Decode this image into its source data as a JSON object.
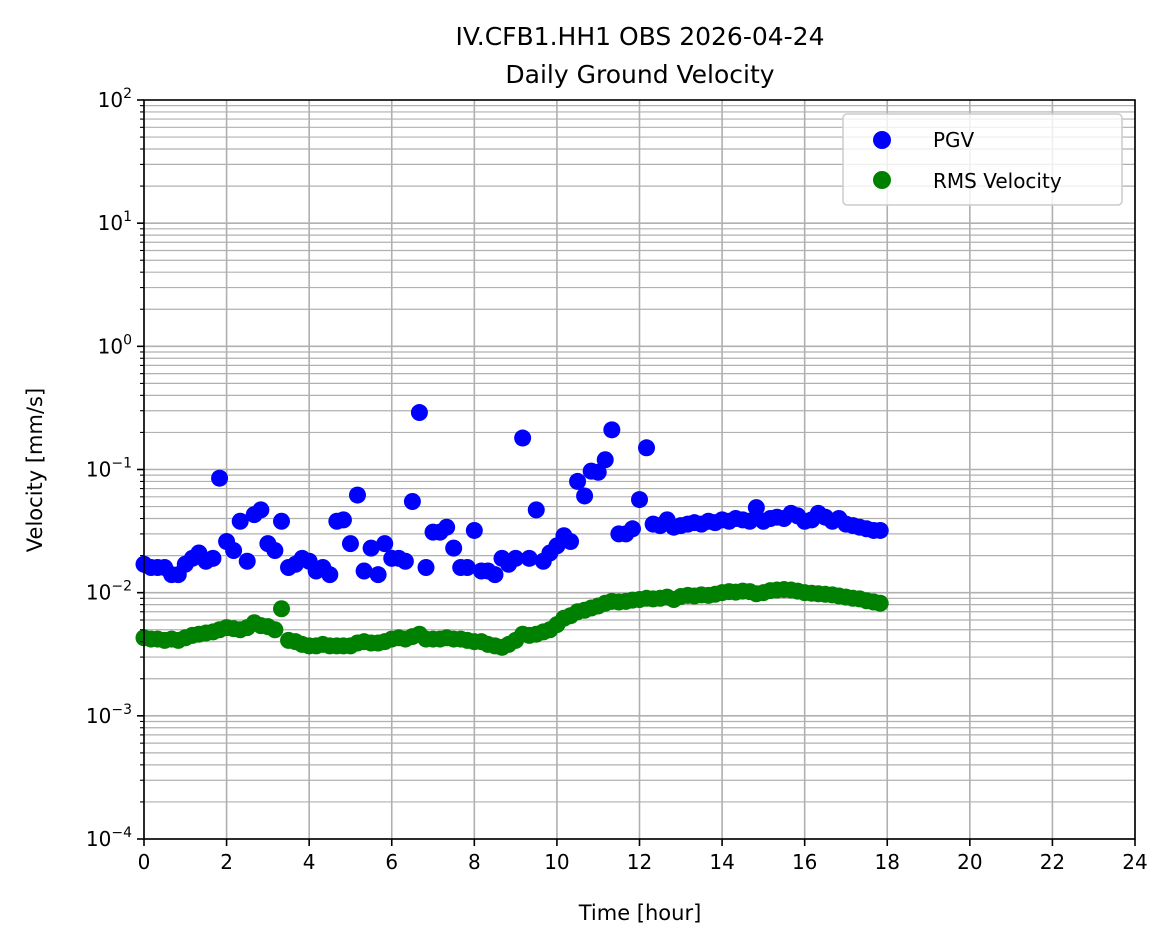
{
  "chart_data": {
    "type": "scatter",
    "title": [
      "IV.CFB1.HH1 OBS 2026-04-24",
      "Daily Ground Velocity"
    ],
    "xlabel": "Time [hour]",
    "ylabel": "Velocity [mm/s]",
    "xlim": [
      0,
      24
    ],
    "ylim": [
      0.0001,
      100
    ],
    "yscale": "log",
    "grid": true,
    "legend_position": "top-right",
    "x_tick_labels": [
      "0",
      "2",
      "4",
      "6",
      "8",
      "10",
      "12",
      "14",
      "16",
      "18",
      "20",
      "22",
      "24"
    ],
    "x_ticks": [
      0,
      2,
      4,
      6,
      8,
      10,
      12,
      14,
      16,
      18,
      20,
      22,
      24
    ],
    "y_tick_labels": [
      {
        "base": "10",
        "exp": "−4",
        "value": 0.0001
      },
      {
        "base": "10",
        "exp": "−3",
        "value": 0.001
      },
      {
        "base": "10",
        "exp": "−2",
        "value": 0.01
      },
      {
        "base": "10",
        "exp": "−1",
        "value": 0.1
      },
      {
        "base": "10",
        "exp": "0",
        "value": 1
      },
      {
        "base": "10",
        "exp": "1",
        "value": 10
      },
      {
        "base": "10",
        "exp": "2",
        "value": 100
      }
    ],
    "series": [
      {
        "name": "PGV",
        "color": "#0000ff",
        "points": [
          [
            0,
            0.017
          ],
          [
            0.17,
            0.016
          ],
          [
            0.33,
            0.016
          ],
          [
            0.5,
            0.016
          ],
          [
            0.67,
            0.014
          ],
          [
            0.83,
            0.014
          ],
          [
            1.0,
            0.017
          ],
          [
            1.17,
            0.019
          ],
          [
            1.33,
            0.021
          ],
          [
            1.5,
            0.018
          ],
          [
            1.67,
            0.019
          ],
          [
            1.83,
            0.085
          ],
          [
            2.0,
            0.026
          ],
          [
            2.17,
            0.022
          ],
          [
            2.33,
            0.038
          ],
          [
            2.5,
            0.018
          ],
          [
            2.67,
            0.043
          ],
          [
            2.83,
            0.047
          ],
          [
            3.0,
            0.025
          ],
          [
            3.17,
            0.022
          ],
          [
            3.33,
            0.038
          ],
          [
            3.5,
            0.016
          ],
          [
            3.67,
            0.017
          ],
          [
            3.83,
            0.019
          ],
          [
            4.0,
            0.018
          ],
          [
            4.17,
            0.015
          ],
          [
            4.33,
            0.016
          ],
          [
            4.5,
            0.014
          ],
          [
            4.67,
            0.038
          ],
          [
            4.83,
            0.039
          ],
          [
            5.0,
            0.025
          ],
          [
            5.17,
            0.062
          ],
          [
            5.33,
            0.015
          ],
          [
            5.5,
            0.023
          ],
          [
            5.67,
            0.014
          ],
          [
            5.83,
            0.025
          ],
          [
            6.0,
            0.019
          ],
          [
            6.17,
            0.019
          ],
          [
            6.33,
            0.018
          ],
          [
            6.5,
            0.055
          ],
          [
            6.67,
            0.29
          ],
          [
            6.83,
            0.016
          ],
          [
            7.0,
            0.031
          ],
          [
            7.17,
            0.031
          ],
          [
            7.33,
            0.034
          ],
          [
            7.5,
            0.023
          ],
          [
            7.67,
            0.016
          ],
          [
            7.83,
            0.016
          ],
          [
            8.0,
            0.032
          ],
          [
            8.17,
            0.015
          ],
          [
            8.33,
            0.015
          ],
          [
            8.5,
            0.014
          ],
          [
            8.67,
            0.019
          ],
          [
            8.83,
            0.017
          ],
          [
            9.0,
            0.019
          ],
          [
            9.17,
            0.18
          ],
          [
            9.33,
            0.019
          ],
          [
            9.5,
            0.047
          ],
          [
            9.67,
            0.018
          ],
          [
            9.83,
            0.021
          ],
          [
            10.0,
            0.024
          ],
          [
            10.17,
            0.029
          ],
          [
            10.33,
            0.026
          ],
          [
            10.5,
            0.08
          ],
          [
            10.67,
            0.061
          ],
          [
            10.83,
            0.097
          ],
          [
            11.0,
            0.095
          ],
          [
            11.17,
            0.12
          ],
          [
            11.33,
            0.21
          ],
          [
            11.5,
            0.03
          ],
          [
            11.67,
            0.03
          ],
          [
            11.83,
            0.033
          ],
          [
            12.0,
            0.057
          ],
          [
            12.17,
            0.15
          ],
          [
            12.33,
            0.036
          ],
          [
            12.5,
            0.035
          ],
          [
            12.67,
            0.039
          ],
          [
            12.83,
            0.034
          ],
          [
            13.0,
            0.035
          ],
          [
            13.17,
            0.036
          ],
          [
            13.33,
            0.037
          ],
          [
            13.5,
            0.036
          ],
          [
            13.67,
            0.038
          ],
          [
            13.83,
            0.037
          ],
          [
            14.0,
            0.039
          ],
          [
            14.17,
            0.038
          ],
          [
            14.33,
            0.04
          ],
          [
            14.5,
            0.039
          ],
          [
            14.67,
            0.038
          ],
          [
            14.83,
            0.049
          ],
          [
            15.0,
            0.038
          ],
          [
            15.17,
            0.04
          ],
          [
            15.33,
            0.041
          ],
          [
            15.5,
            0.04
          ],
          [
            15.67,
            0.044
          ],
          [
            15.83,
            0.042
          ],
          [
            16.0,
            0.038
          ],
          [
            16.17,
            0.039
          ],
          [
            16.33,
            0.044
          ],
          [
            16.5,
            0.041
          ],
          [
            16.67,
            0.038
          ],
          [
            16.83,
            0.04
          ],
          [
            17.0,
            0.036
          ],
          [
            17.17,
            0.035
          ],
          [
            17.33,
            0.034
          ],
          [
            17.5,
            0.033
          ],
          [
            17.67,
            0.032
          ],
          [
            17.83,
            0.032
          ]
        ]
      },
      {
        "name": "RMS Velocity",
        "color": "#008000",
        "points": [
          [
            0,
            0.0043
          ],
          [
            0.17,
            0.0042
          ],
          [
            0.33,
            0.0042
          ],
          [
            0.5,
            0.0041
          ],
          [
            0.67,
            0.0042
          ],
          [
            0.83,
            0.0041
          ],
          [
            1.0,
            0.0043
          ],
          [
            1.17,
            0.0045
          ],
          [
            1.33,
            0.0046
          ],
          [
            1.5,
            0.0047
          ],
          [
            1.67,
            0.0048
          ],
          [
            1.83,
            0.005
          ],
          [
            2.0,
            0.0052
          ],
          [
            2.17,
            0.0051
          ],
          [
            2.33,
            0.005
          ],
          [
            2.5,
            0.0052
          ],
          [
            2.67,
            0.0057
          ],
          [
            2.83,
            0.0054
          ],
          [
            3.0,
            0.0053
          ],
          [
            3.17,
            0.005
          ],
          [
            3.33,
            0.0074
          ],
          [
            3.5,
            0.0041
          ],
          [
            3.67,
            0.004
          ],
          [
            3.83,
            0.0038
          ],
          [
            4.0,
            0.0037
          ],
          [
            4.17,
            0.0037
          ],
          [
            4.33,
            0.0038
          ],
          [
            4.5,
            0.0037
          ],
          [
            4.67,
            0.0037
          ],
          [
            4.83,
            0.0037
          ],
          [
            5.0,
            0.0037
          ],
          [
            5.17,
            0.0039
          ],
          [
            5.33,
            0.004
          ],
          [
            5.5,
            0.0039
          ],
          [
            5.67,
            0.0039
          ],
          [
            5.83,
            0.004
          ],
          [
            6.0,
            0.0042
          ],
          [
            6.17,
            0.0043
          ],
          [
            6.33,
            0.0042
          ],
          [
            6.5,
            0.0044
          ],
          [
            6.67,
            0.0046
          ],
          [
            6.83,
            0.0042
          ],
          [
            7.0,
            0.0042
          ],
          [
            7.17,
            0.0042
          ],
          [
            7.33,
            0.0043
          ],
          [
            7.5,
            0.0042
          ],
          [
            7.67,
            0.0042
          ],
          [
            7.83,
            0.0041
          ],
          [
            8.0,
            0.004
          ],
          [
            8.17,
            0.004
          ],
          [
            8.33,
            0.0038
          ],
          [
            8.5,
            0.0037
          ],
          [
            8.67,
            0.0036
          ],
          [
            8.83,
            0.0038
          ],
          [
            9.0,
            0.0041
          ],
          [
            9.17,
            0.0046
          ],
          [
            9.33,
            0.0045
          ],
          [
            9.5,
            0.0046
          ],
          [
            9.67,
            0.0048
          ],
          [
            9.83,
            0.005
          ],
          [
            10.0,
            0.0055
          ],
          [
            10.17,
            0.0062
          ],
          [
            10.33,
            0.0065
          ],
          [
            10.5,
            0.007
          ],
          [
            10.67,
            0.0072
          ],
          [
            10.83,
            0.0075
          ],
          [
            11.0,
            0.0078
          ],
          [
            11.17,
            0.0082
          ],
          [
            11.33,
            0.0085
          ],
          [
            11.5,
            0.0084
          ],
          [
            11.67,
            0.0085
          ],
          [
            11.83,
            0.0087
          ],
          [
            12.0,
            0.0088
          ],
          [
            12.17,
            0.009
          ],
          [
            12.33,
            0.0089
          ],
          [
            12.5,
            0.009
          ],
          [
            12.67,
            0.0092
          ],
          [
            12.83,
            0.0088
          ],
          [
            13.0,
            0.0093
          ],
          [
            13.17,
            0.0095
          ],
          [
            13.33,
            0.0094
          ],
          [
            13.5,
            0.0096
          ],
          [
            13.67,
            0.0095
          ],
          [
            13.83,
            0.0097
          ],
          [
            14.0,
            0.01
          ],
          [
            14.17,
            0.0102
          ],
          [
            14.33,
            0.0101
          ],
          [
            14.5,
            0.0103
          ],
          [
            14.67,
            0.0102
          ],
          [
            14.83,
            0.0098
          ],
          [
            15.0,
            0.01
          ],
          [
            15.17,
            0.0104
          ],
          [
            15.33,
            0.0105
          ],
          [
            15.5,
            0.0106
          ],
          [
            15.67,
            0.0105
          ],
          [
            15.83,
            0.0103
          ],
          [
            16.0,
            0.01
          ],
          [
            16.17,
            0.0099
          ],
          [
            16.33,
            0.0098
          ],
          [
            16.5,
            0.0097
          ],
          [
            16.67,
            0.0096
          ],
          [
            16.83,
            0.0094
          ],
          [
            17.0,
            0.0092
          ],
          [
            17.17,
            0.009
          ],
          [
            17.33,
            0.0089
          ],
          [
            17.5,
            0.0086
          ],
          [
            17.67,
            0.0084
          ],
          [
            17.83,
            0.0082
          ]
        ]
      }
    ]
  }
}
